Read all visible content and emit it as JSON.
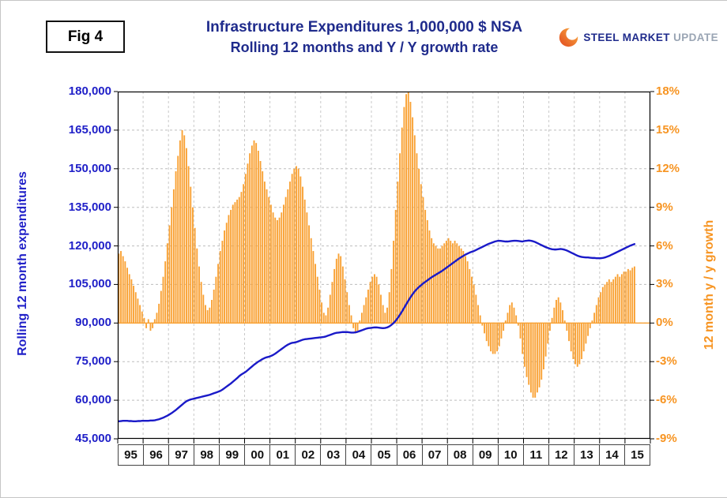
{
  "header": {
    "fig_label": "Fig 4",
    "title_line1": "Infrastructure Expenditures 1,000,000 $ NSA",
    "title_line2": "Rolling 12 months and Y / Y growth rate"
  },
  "logo": {
    "word1": "STEEL",
    "word2": "MARKET",
    "word3": "UPDATE"
  },
  "chart_data": {
    "type": "combo",
    "title": "Infrastructure Expenditures 1,000,000 $ NSA — Rolling 12 months and Y / Y growth rate",
    "x_unit": "month",
    "x_start": "1995-01",
    "x_end": "2015-05",
    "x_year_labels": [
      "95",
      "96",
      "97",
      "98",
      "99",
      "00",
      "01",
      "02",
      "03",
      "04",
      "05",
      "06",
      "07",
      "08",
      "09",
      "10",
      "11",
      "12",
      "13",
      "14",
      "15"
    ],
    "grid": true,
    "left_axis": {
      "title": "Rolling 12 month expenditures",
      "range": [
        45000,
        180000
      ],
      "tick_step": 15000,
      "tick_labels": [
        "180,000",
        "165,000",
        "150,000",
        "135,000",
        "120,000",
        "105,000",
        "90,000",
        "75,000",
        "60,000",
        "45,000"
      ],
      "color": "#2020c8"
    },
    "right_axis": {
      "title": "12 month y / y growth",
      "range": [
        -9,
        18
      ],
      "tick_step": 3,
      "tick_labels": [
        "18%",
        "15%",
        "12%",
        "9%",
        "6%",
        "3%",
        "0%",
        "-3%",
        "-6%",
        "-9%"
      ],
      "color": "#f79421"
    },
    "series": [
      {
        "name": "12 month y / y growth rate",
        "type": "bar",
        "axis": "right",
        "unit": "%",
        "color": "#f9a133",
        "values": [
          5.4,
          5.6,
          5.2,
          4.8,
          4.3,
          3.8,
          3.4,
          2.9,
          2.4,
          1.9,
          1.4,
          0.9,
          0.4,
          -0.4,
          0.3,
          -0.6,
          -0.4,
          0.3,
          0.8,
          1.5,
          2.5,
          3.6,
          4.8,
          6.2,
          7.6,
          9.0,
          10.4,
          11.8,
          13.0,
          14.2,
          15.0,
          14.6,
          13.6,
          12.2,
          10.6,
          9.0,
          7.4,
          5.8,
          4.4,
          3.2,
          2.2,
          1.4,
          1.0,
          1.2,
          1.8,
          2.6,
          3.6,
          4.6,
          5.6,
          6.4,
          7.2,
          7.8,
          8.4,
          8.8,
          9.2,
          9.4,
          9.6,
          9.8,
          10.2,
          10.8,
          11.6,
          12.4,
          13.2,
          13.8,
          14.2,
          14.0,
          13.4,
          12.6,
          11.8,
          11.0,
          10.4,
          9.8,
          9.2,
          8.6,
          8.2,
          8.0,
          8.2,
          8.6,
          9.2,
          9.8,
          10.4,
          11.0,
          11.6,
          12.0,
          12.2,
          12.0,
          11.4,
          10.6,
          9.6,
          8.6,
          7.6,
          6.6,
          5.6,
          4.6,
          3.6,
          2.6,
          1.6,
          0.8,
          0.6,
          1.2,
          2.2,
          3.2,
          4.2,
          5.0,
          5.4,
          5.2,
          4.4,
          3.4,
          2.4,
          1.4,
          0.6,
          -0.4,
          -0.8,
          -0.6,
          0.2,
          0.8,
          1.4,
          2.0,
          2.6,
          3.2,
          3.6,
          3.8,
          3.6,
          3.0,
          2.2,
          1.4,
          0.8,
          1.2,
          2.4,
          4.2,
          6.4,
          8.8,
          11.0,
          13.2,
          15.2,
          16.8,
          17.8,
          18.0,
          17.2,
          16.0,
          14.6,
          13.2,
          12.0,
          10.8,
          9.8,
          8.8,
          8.0,
          7.2,
          6.6,
          6.2,
          6.0,
          5.8,
          5.8,
          6.0,
          6.2,
          6.4,
          6.6,
          6.4,
          6.2,
          6.4,
          6.2,
          6.0,
          5.8,
          5.6,
          5.2,
          4.8,
          4.2,
          3.6,
          3.0,
          2.2,
          1.4,
          0.6,
          -0.2,
          -0.8,
          -1.4,
          -1.8,
          -2.2,
          -2.4,
          -2.4,
          -2.2,
          -1.8,
          -1.2,
          -0.6,
          0.2,
          0.8,
          1.4,
          1.6,
          1.2,
          0.6,
          -0.2,
          -1.2,
          -2.4,
          -3.4,
          -4.2,
          -4.8,
          -5.4,
          -5.8,
          -5.8,
          -5.4,
          -5.0,
          -4.4,
          -3.6,
          -2.6,
          -1.6,
          -0.6,
          0.4,
          1.2,
          1.8,
          2.0,
          1.6,
          1.0,
          0.2,
          -0.6,
          -1.4,
          -2.2,
          -2.8,
          -3.2,
          -3.4,
          -3.2,
          -2.8,
          -2.2,
          -1.6,
          -1.0,
          -0.4,
          0.2,
          0.8,
          1.4,
          2.0,
          2.4,
          2.8,
          3.0,
          3.2,
          3.4,
          3.2,
          3.4,
          3.6,
          3.8,
          3.6,
          3.8,
          4.0,
          4.0,
          4.2,
          4.1,
          4.3,
          4.4
        ]
      },
      {
        "name": "Rolling 12 month expenditures",
        "type": "line",
        "axis": "left",
        "unit": "1,000,000 $",
        "color": "#1a1ac8",
        "values": [
          51800,
          51900,
          52000,
          52000,
          52000,
          51900,
          51900,
          51800,
          51800,
          51900,
          51900,
          52000,
          52000,
          52000,
          52000,
          52100,
          52100,
          52200,
          52400,
          52600,
          52900,
          53200,
          53600,
          54000,
          54500,
          55000,
          55600,
          56200,
          56900,
          57600,
          58300,
          59000,
          59600,
          60000,
          60300,
          60500,
          60700,
          60900,
          61100,
          61300,
          61500,
          61700,
          61900,
          62100,
          62400,
          62700,
          63000,
          63300,
          63600,
          64100,
          64700,
          65300,
          65900,
          66500,
          67200,
          67900,
          68600,
          69400,
          70000,
          70500,
          71000,
          71700,
          72400,
          73100,
          73800,
          74400,
          75000,
          75500,
          76000,
          76400,
          76700,
          76900,
          77200,
          77600,
          78100,
          78700,
          79300,
          79900,
          80500,
          81100,
          81600,
          82000,
          82300,
          82400,
          82600,
          82900,
          83200,
          83500,
          83700,
          83800,
          83900,
          84000,
          84100,
          84200,
          84300,
          84400,
          84500,
          84600,
          84800,
          85100,
          85400,
          85700,
          86000,
          86200,
          86300,
          86400,
          86500,
          86500,
          86500,
          86400,
          86300,
          86300,
          86400,
          86600,
          86900,
          87200,
          87500,
          87800,
          88000,
          88100,
          88200,
          88300,
          88300,
          88200,
          88100,
          88000,
          88100,
          88300,
          88700,
          89300,
          90000,
          90900,
          92000,
          93200,
          94500,
          95900,
          97300,
          98700,
          100000,
          101200,
          102300,
          103200,
          104000,
          104700,
          105400,
          106000,
          106600,
          107200,
          107800,
          108300,
          108800,
          109300,
          109800,
          110300,
          110900,
          111500,
          112100,
          112700,
          113300,
          113900,
          114500,
          115100,
          115600,
          116100,
          116600,
          117000,
          117400,
          117700,
          118000,
          118400,
          118800,
          119200,
          119600,
          120000,
          120400,
          120800,
          121100,
          121400,
          121700,
          121900,
          122000,
          121900,
          121800,
          121700,
          121700,
          121800,
          121900,
          122000,
          122000,
          121900,
          121800,
          121700,
          121900,
          122000,
          122100,
          122000,
          121800,
          121500,
          121100,
          120700,
          120300,
          119900,
          119500,
          119200,
          118900,
          118700,
          118600,
          118600,
          118700,
          118800,
          118700,
          118500,
          118200,
          117800,
          117400,
          117000,
          116600,
          116200,
          115900,
          115700,
          115600,
          115500,
          115500,
          115400,
          115300,
          115300,
          115200,
          115200,
          115200,
          115300,
          115500,
          115800,
          116100,
          116500,
          116900,
          117300,
          117700,
          118100,
          118500,
          118900,
          119300,
          119700,
          120100,
          120400,
          120700
        ]
      }
    ]
  }
}
